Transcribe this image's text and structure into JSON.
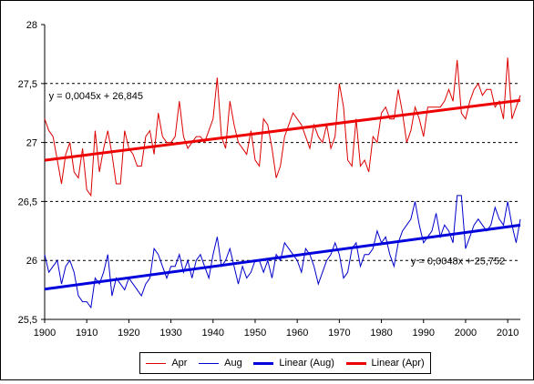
{
  "chart_data": {
    "type": "line",
    "title": "",
    "xlabel": "",
    "ylabel": "",
    "xlim": [
      1900,
      2013
    ],
    "ylim": [
      25.5,
      28
    ],
    "x_ticks": [
      "1900",
      "1910",
      "1920",
      "1930",
      "1940",
      "1950",
      "1960",
      "1970",
      "1980",
      "1990",
      "2000",
      "2010"
    ],
    "y_ticks": [
      "25,5",
      "26",
      "26,5",
      "27",
      "27,5",
      "28"
    ],
    "gridlines_y": [
      26,
      26.5,
      27,
      27.5
    ],
    "legend_position": "bottom",
    "colors": {
      "apr": "#dd0000",
      "aug": "#0000cc",
      "linear_aug": "#0000dd",
      "linear_apr": "#ee0000"
    },
    "series": [
      {
        "name": "Apr",
        "x_start": 1900,
        "values": [
          27.2,
          27.1,
          27.05,
          26.85,
          26.65,
          26.9,
          27.0,
          26.75,
          26.7,
          26.95,
          26.6,
          26.55,
          27.1,
          26.75,
          26.95,
          27.1,
          26.9,
          26.65,
          26.65,
          27.1,
          26.95,
          26.9,
          26.8,
          26.8,
          27.05,
          27.1,
          26.9,
          27.25,
          27.05,
          27.0,
          27.0,
          27.05,
          27.35,
          27.05,
          26.95,
          27.0,
          27.05,
          27.05,
          27.0,
          27.1,
          27.2,
          27.55,
          27.05,
          26.95,
          27.35,
          27.15,
          27.0,
          26.95,
          26.9,
          27.1,
          26.85,
          26.8,
          27.2,
          27.15,
          26.95,
          26.7,
          26.8,
          27.05,
          27.15,
          27.25,
          27.2,
          27.15,
          27.05,
          26.95,
          27.15,
          27.05,
          27.0,
          27.15,
          26.95,
          27.05,
          27.5,
          27.3,
          26.85,
          26.8,
          27.2,
          26.8,
          26.85,
          26.75,
          27.05,
          27.0,
          27.25,
          27.3,
          27.2,
          27.2,
          27.45,
          27.25,
          27.0,
          27.1,
          27.3,
          27.2,
          27.05,
          27.3,
          27.3,
          27.3,
          27.3,
          27.35,
          27.45,
          27.35,
          27.7,
          27.25,
          27.2,
          27.35,
          27.45,
          27.5,
          27.4,
          27.45,
          27.45,
          27.3,
          27.35,
          27.2,
          27.72,
          27.2,
          27.3,
          27.4
        ],
        "trendline_label": ""
      },
      {
        "name": "Aug",
        "x_start": 1900,
        "values": [
          26.05,
          25.9,
          25.95,
          26.0,
          25.8,
          25.95,
          26.0,
          25.9,
          25.7,
          25.65,
          25.65,
          25.6,
          25.85,
          25.8,
          25.9,
          26.05,
          25.7,
          25.85,
          25.8,
          25.75,
          25.85,
          25.8,
          25.75,
          25.7,
          25.8,
          25.85,
          26.1,
          26.05,
          25.95,
          25.85,
          25.95,
          25.95,
          26.05,
          25.9,
          26.0,
          25.85,
          26.0,
          26.05,
          25.95,
          25.85,
          26.05,
          26.2,
          25.95,
          26.0,
          26.1,
          25.95,
          25.8,
          25.95,
          25.85,
          25.9,
          26.0,
          26.0,
          25.9,
          26.0,
          25.85,
          26.05,
          26.0,
          26.15,
          26.1,
          26.05,
          26.0,
          25.9,
          26.1,
          26.05,
          25.95,
          25.8,
          25.9,
          26.0,
          26.05,
          26.15,
          26.05,
          25.85,
          25.9,
          26.1,
          26.15,
          25.95,
          26.05,
          26.05,
          26.1,
          26.25,
          26.15,
          26.2,
          26.05,
          25.95,
          26.15,
          26.25,
          26.3,
          26.35,
          26.5,
          26.3,
          26.15,
          26.2,
          26.25,
          26.4,
          26.2,
          26.3,
          26.25,
          26.15,
          26.55,
          26.55,
          26.1,
          26.2,
          26.3,
          26.35,
          26.3,
          26.25,
          26.3,
          26.45,
          26.35,
          26.3,
          26.5,
          26.3,
          26.15,
          26.35
        ],
        "trendline_label": ""
      },
      {
        "name": "Linear (Aug)",
        "slope": 0.0048,
        "intercept": 25.752,
        "x_origin": 1899
      },
      {
        "name": "Linear (Apr)",
        "slope": 0.0045,
        "intercept": 26.845,
        "x_origin": 1899
      }
    ],
    "annotations": [
      {
        "text": "y = 0,0045x + 26,845",
        "x": 1901,
        "y": 27.35
      },
      {
        "text": "y = 0,0048x + 25,752",
        "x": 1987,
        "y": 25.95
      }
    ]
  }
}
